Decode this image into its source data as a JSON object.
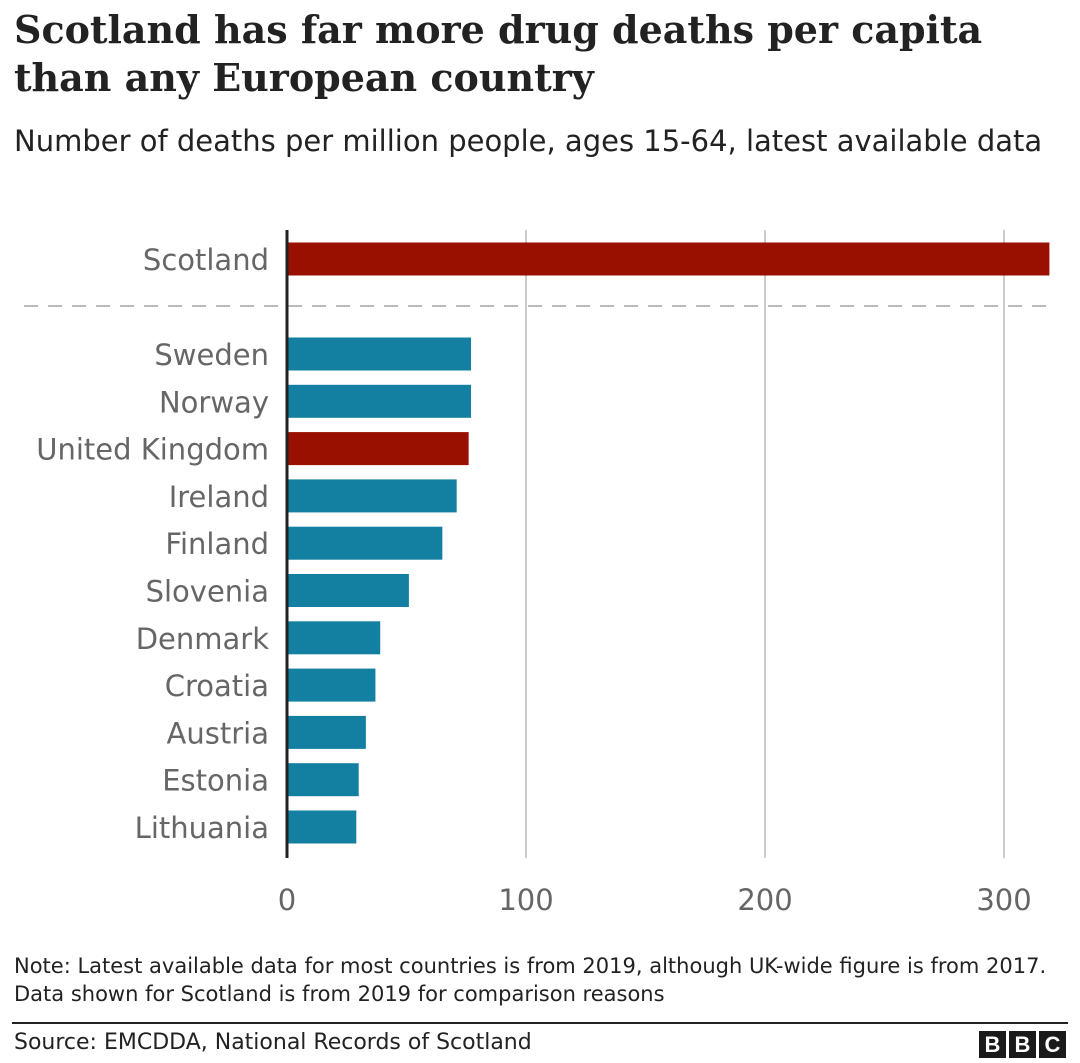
{
  "chart_data": {
    "type": "bar",
    "orientation": "horizontal",
    "title": "Scotland has far more drug deaths per capita than any European country",
    "subtitle": "Number of deaths per million people, ages 15-64, latest available data",
    "categories": [
      "Scotland",
      "Sweden",
      "Norway",
      "United Kingdom",
      "Ireland",
      "Finland",
      "Slovenia",
      "Denmark",
      "Croatia",
      "Austria",
      "Estonia",
      "Lithuania"
    ],
    "values": [
      319,
      77,
      77,
      76,
      71,
      65,
      51,
      39,
      37,
      33,
      30,
      29
    ],
    "highlighted": [
      "Scotland",
      "United Kingdom"
    ],
    "colors": {
      "highlight": "#990f00",
      "default": "#1380a1",
      "grid": "#cccccc",
      "axis": "#222222",
      "tick_text": "#666666"
    },
    "xlim": [
      0,
      320
    ],
    "xticks": [
      0,
      100,
      200,
      300
    ],
    "grid": true,
    "separator_after": "Scotland"
  },
  "note": "Note: Latest available data for most countries is from 2019, although UK-wide figure is from 2017. Data shown for Scotland is from 2019 for comparison reasons",
  "source": "Source: EMCDDA, National Records of Scotland",
  "logo": [
    "B",
    "B",
    "C"
  ]
}
